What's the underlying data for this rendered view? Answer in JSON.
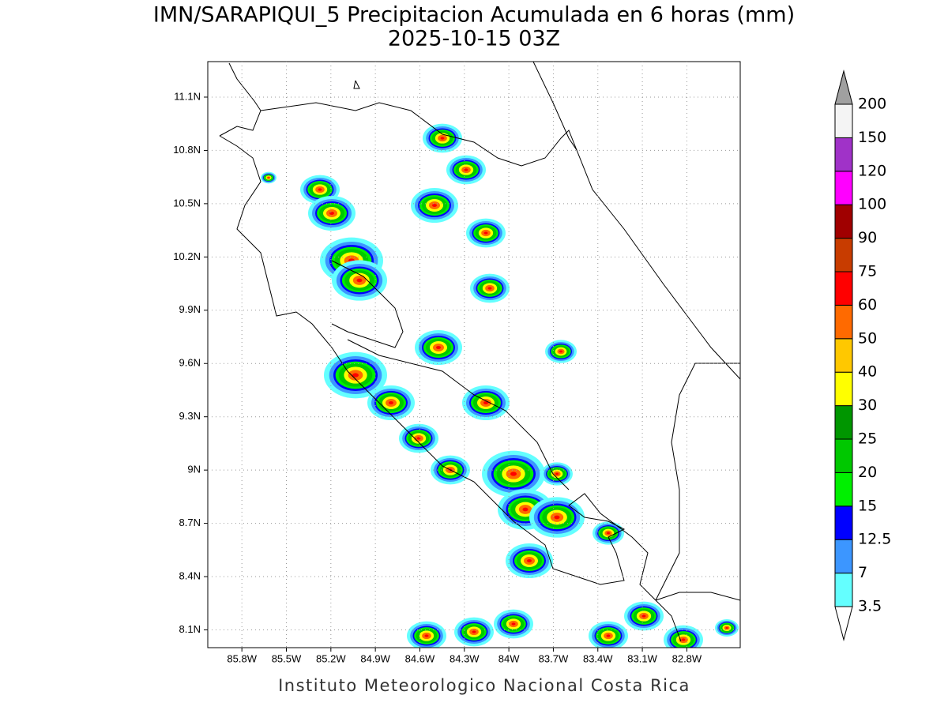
{
  "title": "IMN/SARAPIQUI_5 Precipitacion Acumulada en 6 horas (mm)",
  "subtitle": "2025-10-15 03Z",
  "footer": "Instituto Meteorologico Nacional Costa Rica",
  "map": {
    "xlim": [
      86.03,
      82.44
    ],
    "ylim": [
      8.0,
      11.3
    ],
    "grid": true,
    "xticks": [
      {
        "value": 85.8,
        "label": "85.8W"
      },
      {
        "value": 85.5,
        "label": "85.5W"
      },
      {
        "value": 85.2,
        "label": "85.2W"
      },
      {
        "value": 84.9,
        "label": "84.9W"
      },
      {
        "value": 84.6,
        "label": "84.6W"
      },
      {
        "value": 84.3,
        "label": "84.3W"
      },
      {
        "value": 84,
        "label": "84W"
      },
      {
        "value": 83.7,
        "label": "83.7W"
      },
      {
        "value": 83.4,
        "label": "83.4W"
      },
      {
        "value": 83.1,
        "label": "83.1W"
      },
      {
        "value": 82.8,
        "label": "82.8W"
      }
    ],
    "yticks": [
      {
        "value": 8.1,
        "label": "8.1N"
      },
      {
        "value": 8.4,
        "label": "8.4N"
      },
      {
        "value": 8.7,
        "label": "8.7N"
      },
      {
        "value": 9,
        "label": "9N"
      },
      {
        "value": 9.3,
        "label": "9.3N"
      },
      {
        "value": 9.6,
        "label": "9.6N"
      },
      {
        "value": 9.9,
        "label": "9.9N"
      },
      {
        "value": 10.2,
        "label": "10.2N"
      },
      {
        "value": 10.5,
        "label": "10.5N"
      },
      {
        "value": 10.8,
        "label": "10.8N"
      },
      {
        "value": 11.1,
        "label": "11.1N"
      }
    ]
  },
  "colorbar": {
    "levels": [
      3.5,
      7,
      12.5,
      15,
      20,
      25,
      30,
      40,
      50,
      60,
      75,
      90,
      100,
      120,
      150,
      200
    ],
    "colors": [
      "#64ffff",
      "#3c96ff",
      "#0000ff",
      "#00f000",
      "#00c800",
      "#009600",
      "#ffff00",
      "#ffc800",
      "#ff6a00",
      "#ff0000",
      "#c83c00",
      "#a00000",
      "#ff00ff",
      "#a032c8",
      "#f4f4f4"
    ],
    "under_color": "#ffffff",
    "over_color": "#a0a0a0"
  }
}
